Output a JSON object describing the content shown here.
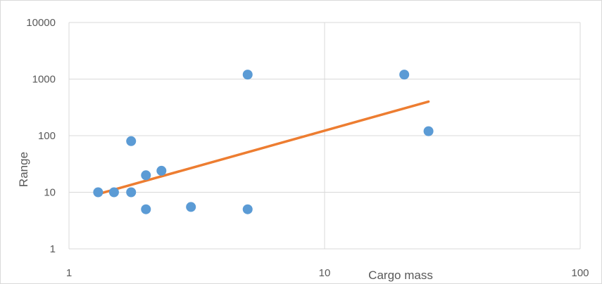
{
  "chart_data": {
    "type": "scatter",
    "title": "",
    "xlabel": "Cargo mass",
    "ylabel": "Range",
    "x_scale": "log",
    "y_scale": "log",
    "xlim": [
      1,
      100
    ],
    "ylim": [
      1,
      10000
    ],
    "x_ticks": [
      "1",
      "10",
      "100"
    ],
    "y_ticks": [
      "1",
      "10",
      "100",
      "1000",
      "10000"
    ],
    "grid": true,
    "legend": "none",
    "series": [
      {
        "type": "scatter",
        "color": "#5b9bd5",
        "points": [
          {
            "x": 1.3,
            "y": 10
          },
          {
            "x": 1.5,
            "y": 10
          },
          {
            "x": 1.75,
            "y": 10
          },
          {
            "x": 1.75,
            "y": 80
          },
          {
            "x": 2.0,
            "y": 20
          },
          {
            "x": 2.0,
            "y": 5
          },
          {
            "x": 2.3,
            "y": 24
          },
          {
            "x": 3.0,
            "y": 5.5
          },
          {
            "x": 5.0,
            "y": 1200
          },
          {
            "x": 5.0,
            "y": 5
          },
          {
            "x": 20.5,
            "y": 1200
          },
          {
            "x": 25.5,
            "y": 120
          }
        ]
      },
      {
        "type": "trendline",
        "color": "#ed7d31",
        "points": [
          {
            "x": 1.3,
            "y": 9.3
          },
          {
            "x": 25.5,
            "y": 400
          }
        ]
      }
    ]
  }
}
